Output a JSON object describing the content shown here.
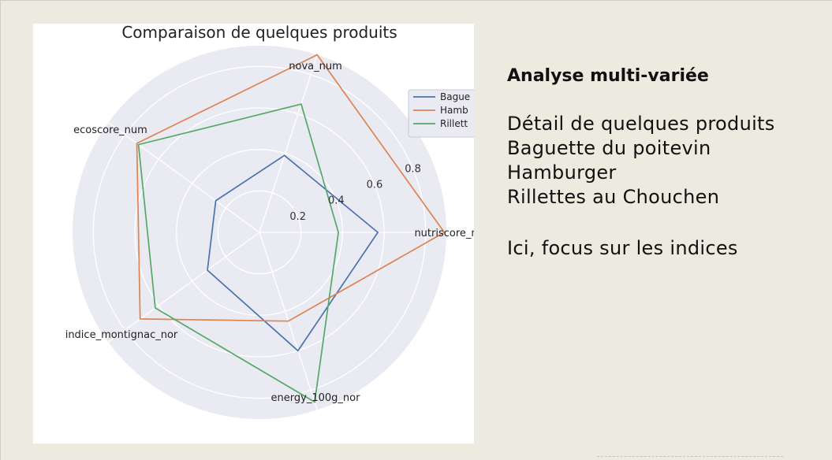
{
  "chart_data": {
    "type": "radar",
    "title": "Comparaison de quelques produits",
    "axes": [
      "nutriscore_num",
      "nova_num",
      "ecoscore_num",
      "indice_montignac_nor",
      "energy_100g_nor"
    ],
    "radial_ticks": [
      0.2,
      0.4,
      0.6,
      0.8
    ],
    "rlim": [
      0,
      0.9
    ],
    "grid": true,
    "legend_position": "top-right",
    "series": [
      {
        "name": "Baguette du poitevin",
        "color": "#4c72b0",
        "values": [
          0.57,
          0.39,
          0.26,
          0.31,
          0.6
        ]
      },
      {
        "name": "Hamburger",
        "color": "#dd8452",
        "values": [
          0.89,
          0.9,
          0.73,
          0.71,
          0.45
        ]
      },
      {
        "name": "Rillettes au Chouchen",
        "color": "#55a868",
        "values": [
          0.38,
          0.65,
          0.72,
          0.62,
          0.86
        ]
      }
    ]
  },
  "legend": {
    "items": [
      {
        "label": "Bague",
        "color": "#4c72b0"
      },
      {
        "label": "Hamb",
        "color": "#dd8452"
      },
      {
        "label": "Rillett",
        "color": "#55a868"
      }
    ]
  },
  "axis_labels": [
    "nutriscore_num",
    "nova_num",
    "ecoscore_num",
    "indice_montignac_nor",
    "energy_100g_nor"
  ],
  "text": {
    "heading": "Analyse multi-variée",
    "lines": [
      "Détail de quelques produits",
      "Baguette du poitevin",
      "Hamburger",
      "Rillettes au Chouchen"
    ],
    "focus": "Ici, focus sur les indices"
  },
  "colors": {
    "panel_background": "#eaeaf2",
    "slide_background": "#edeae0"
  }
}
